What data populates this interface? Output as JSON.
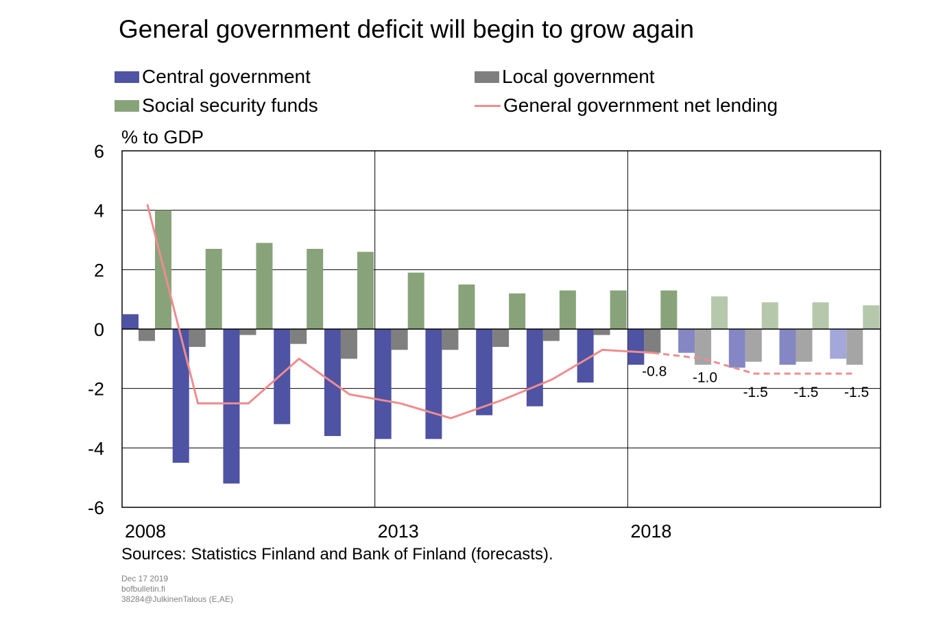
{
  "title": "General government deficit will begin to grow again",
  "legend": [
    {
      "label": "Central government",
      "color": "#4e53a3",
      "kind": "bar"
    },
    {
      "label": "Local government",
      "color": "#7f7f7f",
      "kind": "bar"
    },
    {
      "label": "Social security funds",
      "color": "#88a37a",
      "kind": "bar"
    },
    {
      "label": "General government net lending",
      "color": "#ee8c8f",
      "kind": "line"
    }
  ],
  "unit_label": "% to GDP",
  "source": "Sources: Statistics Finland and Bank of Finland (forecasts).",
  "footer": {
    "date": "Dec 17 2019",
    "site": "bofbulletin.fi",
    "code": "38284@JulkinenTalous  (E,AE)"
  },
  "chart_data": {
    "type": "bar",
    "categories": [
      "2008",
      "2009",
      "2010",
      "2011",
      "2012",
      "2013",
      "2014",
      "2015",
      "2016",
      "2017",
      "2018",
      "2019",
      "2020",
      "2021",
      "2022"
    ],
    "x_tick_labels": [
      "2008",
      "2013",
      "2018"
    ],
    "y_tick_labels": [
      "6",
      "4",
      "2",
      "0",
      "-2",
      "-4",
      "-6"
    ],
    "ylim": [
      -6,
      6
    ],
    "grid": true,
    "forecast_from": "2019",
    "series": [
      {
        "name": "Central government",
        "type": "bar",
        "color": "#4e53a3",
        "forecast_colors": [
          "#8487c4",
          "#8487c4",
          "#8487c4",
          "#a4a7da"
        ],
        "values": [
          0.5,
          -4.5,
          -5.2,
          -3.2,
          -3.6,
          -3.7,
          -3.7,
          -2.9,
          -2.6,
          -1.8,
          -1.2,
          -0.8,
          -1.3,
          -1.2,
          -1.0
        ]
      },
      {
        "name": "Local government",
        "type": "bar",
        "color": "#7f7f7f",
        "forecast_colors": [
          "#a5a5a5",
          "#a5a5a5",
          "#a5a5a5",
          "#a5a5a5"
        ],
        "values": [
          -0.4,
          -0.6,
          -0.2,
          -0.5,
          -1.0,
          -0.7,
          -0.7,
          -0.6,
          -0.4,
          -0.2,
          -0.8,
          -1.2,
          -1.1,
          -1.1,
          -1.2
        ]
      },
      {
        "name": "Social security funds",
        "type": "bar",
        "color": "#88a37a",
        "forecast_colors": [
          "#b5c8ab",
          "#b5c8ab",
          "#b5c8ab",
          "#b5c8ab"
        ],
        "values": [
          4.0,
          2.7,
          2.9,
          2.7,
          2.6,
          1.9,
          1.5,
          1.2,
          1.3,
          1.3,
          1.3,
          1.1,
          0.9,
          0.9,
          0.8
        ]
      },
      {
        "name": "General government net lending",
        "type": "line",
        "color": "#ee8c8f",
        "values": [
          4.2,
          -2.5,
          -2.5,
          -1.0,
          -2.2,
          -2.5,
          -3.0,
          -2.4,
          -1.7,
          -0.7,
          -0.8,
          -1.0,
          -1.5,
          -1.5,
          -1.5
        ]
      }
    ],
    "data_labels": [
      {
        "category": "2018",
        "text": "-0.8"
      },
      {
        "category": "2019",
        "text": "-1.0"
      },
      {
        "category": "2020",
        "text": "-1.5"
      },
      {
        "category": "2021",
        "text": "-1.5"
      },
      {
        "category": "2022",
        "text": "-1.5"
      }
    ]
  }
}
